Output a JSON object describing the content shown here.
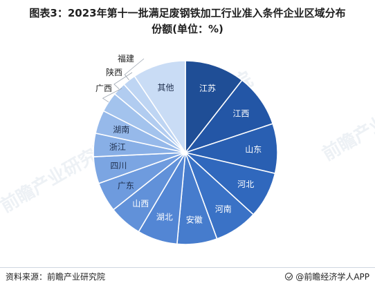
{
  "title": {
    "line1": "图表3：2023年第十一批满足废钢铁加工行业准入条件企业区域分布",
    "line2": "份额(单位：%)"
  },
  "footer": {
    "source": "资料来源：前瞻产业研究院",
    "brand": "@前瞻经济学人APP"
  },
  "watermark": "前瞻产业研究院",
  "chart_data": {
    "type": "pie",
    "title": "2023年第十一批满足废钢铁加工行业准入条件企业区域分布份额(单位：%)",
    "unit": "%",
    "slices": [
      {
        "label": "江苏",
        "value": 10.5,
        "color": "#1f4e96"
      },
      {
        "label": "江西",
        "value": 9.3,
        "color": "#2356a6"
      },
      {
        "label": "山东",
        "value": 8.7,
        "color": "#295fb2"
      },
      {
        "label": "河北",
        "value": 8.1,
        "color": "#3068bd"
      },
      {
        "label": "河南",
        "value": 7.6,
        "color": "#3a72c6"
      },
      {
        "label": "安徽",
        "value": 7.0,
        "color": "#467ccd"
      },
      {
        "label": "湖北",
        "value": 7.0,
        "color": "#5386d4"
      },
      {
        "label": "山西",
        "value": 5.8,
        "color": "#6191d9"
      },
      {
        "label": "广东",
        "value": 5.2,
        "color": "#6e9bde"
      },
      {
        "label": "四川",
        "value": 4.7,
        "color": "#7ba5e2"
      },
      {
        "label": "浙江",
        "value": 4.1,
        "color": "#88afe6"
      },
      {
        "label": "湖南",
        "value": 4.1,
        "color": "#96b9ea"
      },
      {
        "label": "广西",
        "value": 3.5,
        "color": "#a3c3ed"
      },
      {
        "label": "陕西",
        "value": 2.3,
        "color": "#b1ccf0"
      },
      {
        "label": "福建",
        "value": 2.3,
        "color": "#bed5f3"
      },
      {
        "label": "其他",
        "value": 9.3,
        "color": "#c9dcf5"
      }
    ],
    "start_angle_deg": 0,
    "direction": "clockwise",
    "legend": "none",
    "labels_inside": [
      "江苏",
      "江西",
      "山东",
      "河北",
      "河南",
      "安徽",
      "湖北",
      "山西",
      "广东",
      "四川",
      "浙江",
      "湖南",
      "其他"
    ],
    "labels_outside": [
      "广西",
      "陕西",
      "福建"
    ]
  }
}
